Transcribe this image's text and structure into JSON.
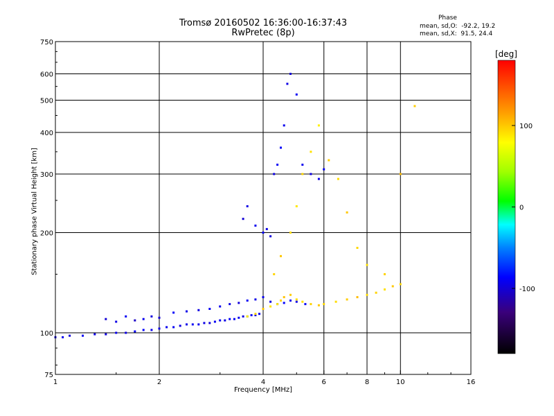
{
  "chart_data": {
    "type": "scatter",
    "title": "Tromsø 20160502 16:36:00-16:37:43",
    "subtitle": "RwPretec (8p)",
    "xlabel": "Frequency [MHz]",
    "ylabel": "Stationary phase Virtual Height [km]",
    "x_scale": "log",
    "y_scale": "log",
    "xlim": [
      1,
      16
    ],
    "ylim": [
      75,
      750
    ],
    "x_ticks": [
      1,
      2,
      4,
      6,
      8,
      10,
      16
    ],
    "x_tick_labels": [
      "1",
      "2",
      "4",
      "6",
      "8",
      "10",
      "16"
    ],
    "y_ticks": [
      75,
      100,
      200,
      300,
      400,
      500,
      600,
      750
    ],
    "y_tick_labels": [
      "75",
      "100",
      "200",
      "300",
      "400",
      "500",
      "600",
      "750"
    ],
    "grid": true,
    "colorbar": {
      "label": "[deg]",
      "ticks": [
        100,
        0,
        -100
      ],
      "tick_labels": [
        "100",
        "0",
        "-100"
      ],
      "range": [
        -180,
        180
      ]
    },
    "phase_stats": {
      "heading": "Phase",
      "o_line": "mean, sd,O:  -92.2, 19.2",
      "x_line": "mean, sd,X:  91.5, 24.4"
    },
    "series": [
      {
        "x": [
          1.0,
          1.05,
          1.1,
          1.2,
          1.3,
          1.4,
          1.5,
          1.6,
          1.7,
          1.8,
          1.9,
          2.0,
          2.1,
          2.2,
          2.3,
          2.4,
          2.5,
          2.6,
          2.7,
          2.8,
          2.9,
          3.0,
          3.1,
          3.2,
          3.3,
          3.4,
          3.5,
          3.6,
          3.7,
          3.8,
          3.9
        ],
        "y": [
          97,
          97,
          98,
          98,
          99,
          99,
          100,
          100,
          101,
          102,
          102,
          103,
          104,
          104,
          105,
          106,
          106,
          106,
          107,
          107,
          108,
          109,
          109,
          110,
          110,
          111,
          112,
          112,
          113,
          113,
          114
        ],
        "phase": [
          -95,
          -92,
          -98,
          -90,
          -94,
          -96,
          -92,
          -95,
          -90,
          -88,
          -93,
          -95,
          -92,
          -90,
          -96,
          -94,
          -90,
          -92,
          -95,
          -98,
          -90,
          -92,
          -95,
          -88,
          -90,
          -92,
          -96,
          -93,
          -90,
          -95,
          -92
        ]
      },
      {
        "x": [
          1.4,
          1.5,
          1.6,
          1.7,
          1.8,
          1.9,
          2.0,
          2.2,
          2.4,
          2.6,
          2.8,
          3.0,
          3.2,
          3.4,
          3.6,
          3.8,
          4.0,
          4.2,
          4.4,
          4.6,
          4.8,
          5.0,
          5.3
        ],
        "y": [
          110,
          108,
          112,
          109,
          110,
          112,
          111,
          115,
          116,
          117,
          118,
          120,
          122,
          123,
          125,
          126,
          128,
          124,
          122,
          123,
          125,
          124,
          122
        ],
        "phase": [
          -100,
          -95,
          -90,
          -105,
          -92,
          -98,
          -100,
          -88,
          -94,
          -96,
          -90,
          -92,
          -95,
          -98,
          -90,
          -94,
          -92,
          -96,
          -90,
          -88,
          -92,
          -95,
          -90
        ]
      },
      {
        "x": [
          3.6,
          3.8,
          4.0,
          4.2,
          4.4,
          4.5,
          4.6,
          4.8,
          5.0,
          5.2,
          5.5,
          5.8,
          6.0,
          6.5,
          7.0,
          7.5,
          8.0,
          8.5,
          9.0,
          9.5,
          10.0
        ],
        "y": [
          112,
          114,
          118,
          120,
          122,
          125,
          128,
          130,
          126,
          124,
          122,
          121,
          122,
          124,
          126,
          128,
          130,
          132,
          135,
          138,
          140
        ],
        "phase": [
          85,
          95,
          100,
          90,
          88,
          95,
          102,
          98,
          92,
          90,
          96,
          100,
          94,
          92,
          98,
          105,
          92,
          96,
          90,
          100,
          94
        ]
      },
      {
        "x": [
          3.5,
          3.6,
          3.8,
          4.0,
          4.1,
          4.2,
          4.3,
          4.4,
          4.5,
          4.6,
          4.7,
          4.8,
          5.0,
          5.2,
          5.5,
          5.8,
          6.0
        ],
        "y": [
          220,
          240,
          210,
          200,
          205,
          195,
          300,
          320,
          360,
          420,
          560,
          600,
          520,
          320,
          300,
          290,
          310
        ],
        "phase": [
          -100,
          -95,
          -92,
          -90,
          -94,
          -98,
          -96,
          -90,
          -88,
          -92,
          -95,
          -100,
          -90,
          -92,
          -96,
          -94,
          -90
        ]
      },
      {
        "x": [
          4.3,
          4.5,
          4.8,
          5.0,
          5.2,
          5.5,
          5.8,
          6.2,
          6.6,
          7.0,
          7.5,
          8.0,
          9.0,
          10.0,
          11.0
        ],
        "y": [
          150,
          170,
          200,
          240,
          300,
          350,
          420,
          330,
          290,
          230,
          180,
          160,
          150,
          300,
          480
        ],
        "phase": [
          95,
          100,
          92,
          88,
          96,
          90,
          85,
          98,
          92,
          100,
          94,
          90,
          96,
          105,
          98
        ]
      }
    ]
  }
}
